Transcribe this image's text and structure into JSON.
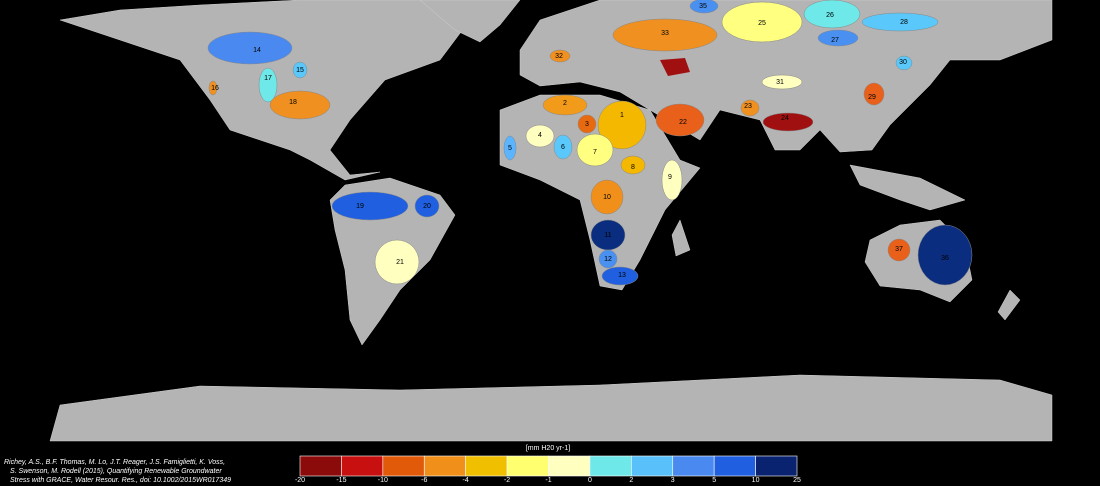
{
  "aquifers": [
    {
      "label": "1",
      "color": "#f5b800"
    },
    {
      "label": "2",
      "color": "#f29a1a"
    },
    {
      "label": "3",
      "color": "#e86a10"
    },
    {
      "label": "4",
      "color": "#ffffc0"
    },
    {
      "label": "5",
      "color": "#5ab4ff"
    },
    {
      "label": "6",
      "color": "#5ac8fa"
    },
    {
      "label": "7",
      "color": "#ffff80"
    },
    {
      "label": "8",
      "color": "#f5b800"
    },
    {
      "label": "9",
      "color": "#ffffc0"
    },
    {
      "label": "10",
      "color": "#f0901a"
    },
    {
      "label": "11",
      "color": "#0a2d80"
    },
    {
      "label": "12",
      "color": "#4a90f0"
    },
    {
      "label": "13",
      "color": "#1f5fe0"
    },
    {
      "label": "14",
      "color": "#4a8af0"
    },
    {
      "label": "15",
      "color": "#5ac8fa"
    },
    {
      "label": "16",
      "color": "#f09020"
    },
    {
      "label": "17",
      "color": "#6ee8e8"
    },
    {
      "label": "18",
      "color": "#f09020"
    },
    {
      "label": "19",
      "color": "#1f5fe0"
    },
    {
      "label": "20",
      "color": "#1f5fe0"
    },
    {
      "label": "21",
      "color": "#ffffc0"
    },
    {
      "label": "22",
      "color": "#e8601a"
    },
    {
      "label": "23",
      "color": "#f09020"
    },
    {
      "label": "24",
      "color": "#a01010"
    },
    {
      "label": "25",
      "color": "#ffff80"
    },
    {
      "label": "26",
      "color": "#6ee8e8"
    },
    {
      "label": "27",
      "color": "#4a90f0"
    },
    {
      "label": "28",
      "color": "#5ac8fa"
    },
    {
      "label": "29",
      "color": "#e8601a"
    },
    {
      "label": "30",
      "color": "#5ac8fa"
    },
    {
      "label": "31",
      "color": "#ffffc0"
    },
    {
      "label": "32",
      "color": "#f09020"
    },
    {
      "label": "33",
      "color": "#f09020"
    },
    {
      "label": "35",
      "color": "#4a90f0"
    },
    {
      "label": "36",
      "color": "#0a2d80"
    },
    {
      "label": "37",
      "color": "#e8601a"
    }
  ],
  "colorbar": {
    "unit_label": "[mm H20 yr-1]",
    "colors": [
      "#8b0a0a",
      "#c81010",
      "#e05a0a",
      "#f0901a",
      "#f0c000",
      "#ffff70",
      "#ffffc0",
      "#6ee8e8",
      "#5ac0fa",
      "#4a8af0",
      "#1f5fe0",
      "#0a2370"
    ],
    "ticks": [
      -20,
      -15,
      -10,
      -6,
      -4,
      -2,
      -1,
      0,
      2,
      3,
      5,
      10,
      25
    ]
  },
  "citation": [
    "Richey, A.S., B.F. Thomas, M. Lo, J.T. Reager, J.S. Famiglietti, K. Voss,",
    "S. Swenson, M. Rodell (2015), Quantifying Renewable Groundwater",
    "Stress with GRACE, Water Resour. Res., doi: 10.1002/2015WR017349"
  ]
}
